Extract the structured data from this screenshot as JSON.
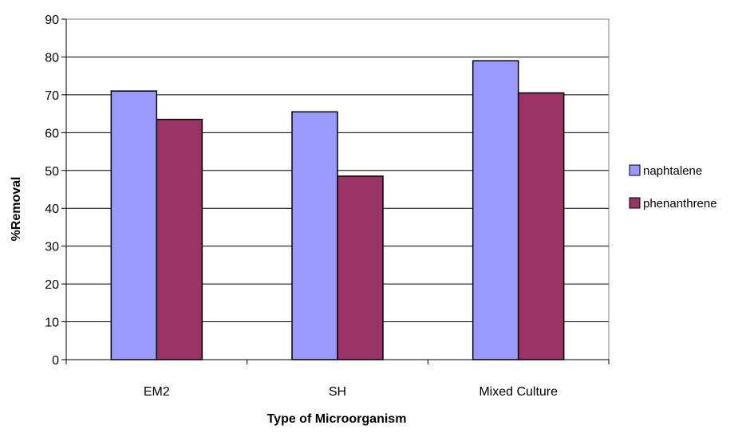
{
  "chart_data": {
    "type": "bar",
    "title": "",
    "xlabel": "Type of Microorganism",
    "ylabel": "%Removal",
    "categories": [
      "EM2",
      "SH",
      "Mixed Culture"
    ],
    "series": [
      {
        "name": "naphtalene",
        "values": [
          71,
          65.5,
          79
        ],
        "color": "#9999ff"
      },
      {
        "name": "phenanthrene",
        "values": [
          63.5,
          48.5,
          70.5
        ],
        "color": "#993366"
      }
    ],
    "ylim": [
      0,
      90
    ],
    "yticks": [
      "0",
      "10",
      "20",
      "30",
      "40",
      "50",
      "60",
      "70",
      "80",
      "90"
    ],
    "grid": true,
    "legend_position": "right"
  }
}
